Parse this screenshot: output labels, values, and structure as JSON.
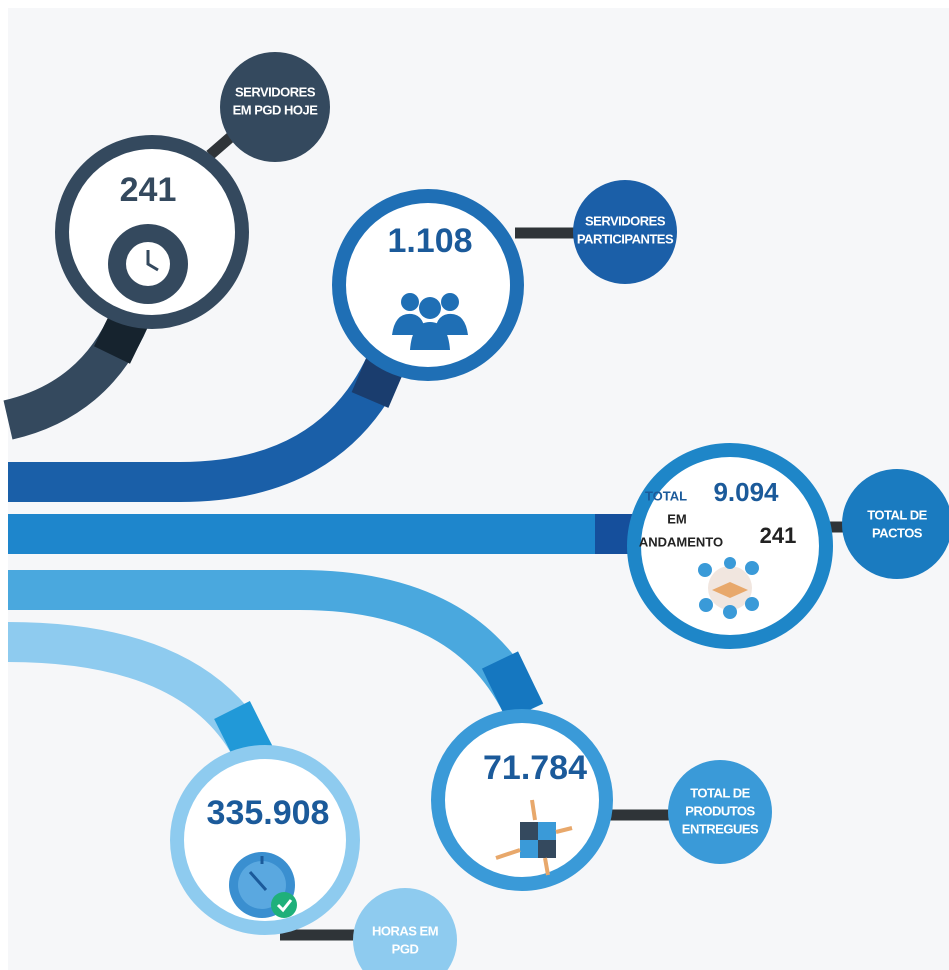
{
  "nodes": [
    {
      "value": "241",
      "label": [
        "SERVIDORES",
        "EM PGD HOJE"
      ]
    },
    {
      "value": "1.108",
      "label": [
        "SERVIDORES",
        "PARTICIPANTES"
      ]
    },
    {
      "total_label": "TOTAL",
      "value": "9.094",
      "status_label": [
        "EM",
        "ANDAMENTO"
      ],
      "status_value": "241",
      "label": [
        "TOTAL DE",
        "PACTOS"
      ]
    },
    {
      "value": "71.784",
      "label": [
        "TOTAL DE",
        "PRODUTOS",
        "ENTREGUES"
      ]
    },
    {
      "value": "335.908",
      "label": [
        "HORAS EM",
        "PGD"
      ]
    }
  ]
}
